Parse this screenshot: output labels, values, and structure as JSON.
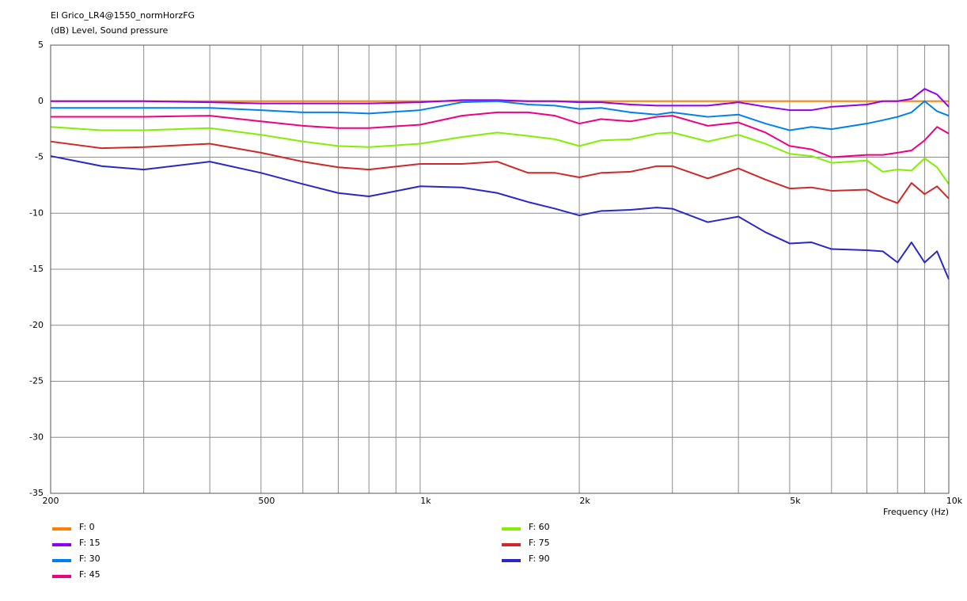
{
  "chart_data": {
    "type": "line",
    "title": "El Grico_LR4@1550_normHorzFG",
    "subtitle": "(dB)  Level, Sound pressure",
    "x_label": "Frequency  (Hz)",
    "x_log": true,
    "grid": true,
    "xlim": [
      200,
      10000
    ],
    "xticks": [
      200,
      500,
      {
        "value": 1000,
        "label": "1k"
      },
      {
        "value": 2000,
        "label": "2k"
      },
      {
        "value": 5000,
        "label": "5k"
      },
      {
        "value": 10000,
        "label": "10k"
      }
    ],
    "xminor": [
      300,
      400,
      600,
      700,
      800,
      900,
      3000,
      4000,
      6000,
      7000,
      8000,
      9000
    ],
    "ylim": [
      -35,
      5
    ],
    "yticks": [
      -35,
      -30,
      -25,
      -20,
      -15,
      -10,
      -5,
      0,
      5
    ],
    "x": [
      200,
      250,
      300,
      400,
      500,
      600,
      700,
      800,
      1000,
      1200,
      1400,
      1600,
      1800,
      2000,
      2200,
      2500,
      2800,
      3000,
      3500,
      4000,
      4500,
      5000,
      5500,
      6000,
      7000,
      7500,
      8000,
      8500,
      9000,
      9500,
      10000
    ],
    "series": [
      {
        "name": "F: 0",
        "color": "#ff8000",
        "values": [
          0,
          0,
          0,
          0,
          0,
          0,
          0,
          0,
          0,
          0,
          0,
          0,
          0,
          0,
          0,
          0,
          0,
          0,
          0,
          0,
          0,
          0,
          0,
          0,
          0,
          0,
          0,
          0,
          0,
          0,
          0
        ]
      },
      {
        "name": "F: 15",
        "color": "#9000f0",
        "values": [
          0,
          0,
          0,
          -0.1,
          -0.2,
          -0.2,
          -0.2,
          -0.2,
          -0.1,
          0.1,
          0.1,
          0,
          0,
          -0.1,
          -0.1,
          -0.3,
          -0.4,
          -0.4,
          -0.4,
          -0.1,
          -0.5,
          -0.8,
          -0.8,
          -0.5,
          -0.3,
          0,
          0,
          0.2,
          1.1,
          0.6,
          -0.5
        ]
      },
      {
        "name": "F: 30",
        "color": "#0080f0",
        "values": [
          -0.6,
          -0.6,
          -0.6,
          -0.6,
          -0.8,
          -1.0,
          -1.0,
          -1.1,
          -0.8,
          -0.1,
          0,
          -0.3,
          -0.4,
          -0.7,
          -0.6,
          -1.0,
          -1.2,
          -1.0,
          -1.4,
          -1.2,
          -2.0,
          -2.6,
          -2.3,
          -2.5,
          -2.0,
          -1.7,
          -1.4,
          -1.0,
          0,
          -0.9,
          -1.3
        ]
      },
      {
        "name": "F: 45",
        "color": "#f00080",
        "values": [
          -1.4,
          -1.4,
          -1.4,
          -1.3,
          -1.8,
          -2.2,
          -2.4,
          -2.4,
          -2.1,
          -1.3,
          -1.0,
          -1.0,
          -1.3,
          -2.0,
          -1.6,
          -1.8,
          -1.4,
          -1.3,
          -2.2,
          -1.9,
          -2.8,
          -4.0,
          -4.3,
          -5.0,
          -4.8,
          -4.8,
          -4.6,
          -4.4,
          -3.5,
          -2.3,
          -2.9
        ]
      },
      {
        "name": "F: 60",
        "color": "#80f000",
        "values": [
          -2.3,
          -2.6,
          -2.6,
          -2.4,
          -3.0,
          -3.6,
          -4.0,
          -4.1,
          -3.8,
          -3.2,
          -2.8,
          -3.1,
          -3.4,
          -4.0,
          -3.5,
          -3.4,
          -2.9,
          -2.8,
          -3.6,
          -3.0,
          -3.8,
          -4.7,
          -4.9,
          -5.5,
          -5.3,
          -6.3,
          -6.1,
          -6.2,
          -5.1,
          -5.9,
          -7.4
        ]
      },
      {
        "name": "F: 75",
        "color": "#d02828",
        "values": [
          -3.6,
          -4.2,
          -4.1,
          -3.8,
          -4.6,
          -5.4,
          -5.9,
          -6.1,
          -5.6,
          -5.6,
          -5.4,
          -6.4,
          -6.4,
          -6.8,
          -6.4,
          -6.3,
          -5.8,
          -5.8,
          -6.9,
          -6.0,
          -7.0,
          -7.8,
          -7.7,
          -8.0,
          -7.9,
          -8.6,
          -9.1,
          -7.3,
          -8.3,
          -7.6,
          -8.7
        ]
      },
      {
        "name": "F: 90",
        "color": "#2828c8",
        "values": [
          -4.9,
          -5.8,
          -6.1,
          -5.4,
          -6.4,
          -7.4,
          -8.2,
          -8.5,
          -7.6,
          -7.7,
          -8.2,
          -9.0,
          -9.6,
          -10.2,
          -9.8,
          -9.7,
          -9.5,
          -9.6,
          -10.8,
          -10.3,
          -11.7,
          -12.7,
          -12.6,
          -13.2,
          -13.3,
          -13.4,
          -14.4,
          -12.6,
          -14.4,
          -13.4,
          -15.9
        ]
      }
    ]
  }
}
